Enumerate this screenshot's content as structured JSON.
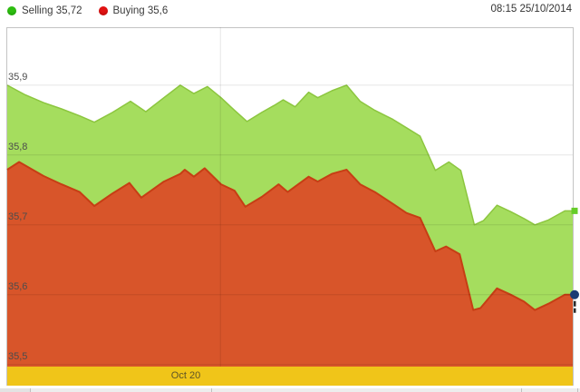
{
  "header": {
    "legend": [
      {
        "id": "selling",
        "label": "Selling 35,72",
        "color": "#2ebe10"
      },
      {
        "id": "buying",
        "label": "Buying 35,6",
        "color": "#e11212"
      }
    ],
    "timestamp": "08:15 25/10/2014"
  },
  "x_axis": {
    "band_label": "Oct 20",
    "band_color": "#f0c519"
  },
  "colors": {
    "grid": "#d9d9d9",
    "border": "#c4c4c4",
    "selling_fill": "#a5dd5e",
    "selling_stroke": "#8cc63f",
    "buying_fill": "#d8552a",
    "buying_stroke": "#c63e14",
    "end_marker_selling": "#66cc29",
    "end_marker_buying": "#1b3c74"
  },
  "chart_data": {
    "type": "area",
    "title": "",
    "xlabel": "Oct 20",
    "ylabel": "",
    "ylim": [
      35.497,
      35.983
    ],
    "grid": true,
    "legend_position": "top-left",
    "yticks": [
      {
        "label": "35,9",
        "value": 35.9
      },
      {
        "label": "35,8",
        "value": 35.8
      },
      {
        "label": "35,7",
        "value": 35.7
      },
      {
        "label": "35,6",
        "value": 35.6
      },
      {
        "label": "35,5",
        "value": 35.5
      }
    ],
    "x_gridlines_frac": [
      0.377
    ],
    "series": [
      {
        "name": "Selling",
        "current_value": 35.72,
        "marker": "square",
        "points": [
          [
            0.0,
            35.9
          ],
          [
            0.032,
            35.886
          ],
          [
            0.064,
            35.875
          ],
          [
            0.096,
            35.866
          ],
          [
            0.128,
            35.856
          ],
          [
            0.154,
            35.847
          ],
          [
            0.186,
            35.861
          ],
          [
            0.218,
            35.877
          ],
          [
            0.245,
            35.862
          ],
          [
            0.277,
            35.882
          ],
          [
            0.306,
            35.9
          ],
          [
            0.33,
            35.888
          ],
          [
            0.354,
            35.898
          ],
          [
            0.378,
            35.882
          ],
          [
            0.402,
            35.864
          ],
          [
            0.424,
            35.848
          ],
          [
            0.45,
            35.861
          ],
          [
            0.472,
            35.871
          ],
          [
            0.488,
            35.879
          ],
          [
            0.509,
            35.869
          ],
          [
            0.533,
            35.89
          ],
          [
            0.549,
            35.882
          ],
          [
            0.574,
            35.892
          ],
          [
            0.6,
            35.9
          ],
          [
            0.624,
            35.877
          ],
          [
            0.65,
            35.864
          ],
          [
            0.682,
            35.851
          ],
          [
            0.706,
            35.839
          ],
          [
            0.73,
            35.827
          ],
          [
            0.757,
            35.778
          ],
          [
            0.781,
            35.79
          ],
          [
            0.802,
            35.778
          ],
          [
            0.826,
            35.7
          ],
          [
            0.842,
            35.706
          ],
          [
            0.866,
            35.728
          ],
          [
            0.89,
            35.719
          ],
          [
            0.914,
            35.709
          ],
          [
            0.933,
            35.7
          ],
          [
            0.957,
            35.707
          ],
          [
            0.986,
            35.72
          ],
          [
            1.0,
            35.72
          ]
        ]
      },
      {
        "name": "Buying",
        "current_value": 35.6,
        "marker": "circle",
        "points": [
          [
            0.0,
            35.779
          ],
          [
            0.021,
            35.79
          ],
          [
            0.064,
            35.77
          ],
          [
            0.096,
            35.758
          ],
          [
            0.128,
            35.747
          ],
          [
            0.154,
            35.727
          ],
          [
            0.186,
            35.745
          ],
          [
            0.216,
            35.76
          ],
          [
            0.237,
            35.739
          ],
          [
            0.277,
            35.762
          ],
          [
            0.306,
            35.773
          ],
          [
            0.314,
            35.779
          ],
          [
            0.33,
            35.769
          ],
          [
            0.349,
            35.781
          ],
          [
            0.378,
            35.758
          ],
          [
            0.402,
            35.749
          ],
          [
            0.421,
            35.726
          ],
          [
            0.45,
            35.74
          ],
          [
            0.48,
            35.758
          ],
          [
            0.496,
            35.747
          ],
          [
            0.533,
            35.769
          ],
          [
            0.549,
            35.762
          ],
          [
            0.574,
            35.773
          ],
          [
            0.6,
            35.779
          ],
          [
            0.624,
            35.758
          ],
          [
            0.65,
            35.747
          ],
          [
            0.682,
            35.73
          ],
          [
            0.706,
            35.717
          ],
          [
            0.73,
            35.71
          ],
          [
            0.757,
            35.662
          ],
          [
            0.776,
            35.669
          ],
          [
            0.8,
            35.658
          ],
          [
            0.824,
            35.578
          ],
          [
            0.837,
            35.581
          ],
          [
            0.866,
            35.609
          ],
          [
            0.89,
            35.6
          ],
          [
            0.914,
            35.59
          ],
          [
            0.933,
            35.578
          ],
          [
            0.957,
            35.587
          ],
          [
            0.986,
            35.6
          ],
          [
            1.0,
            35.6
          ]
        ]
      }
    ]
  }
}
